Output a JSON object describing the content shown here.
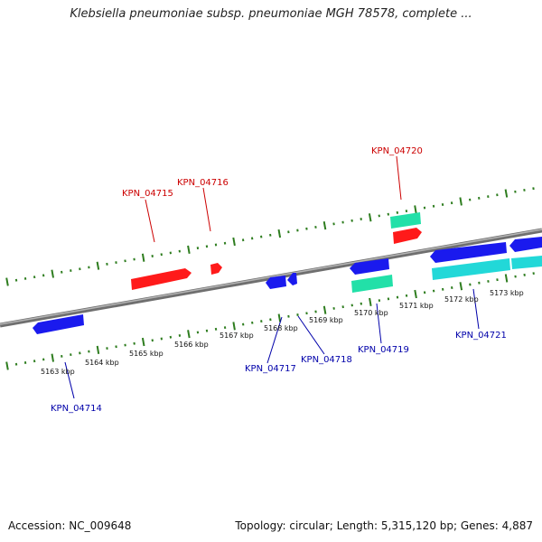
{
  "title": "Klebsiella pneumoniae subsp. pneumoniae MGH 78578, complete ...",
  "footer": {
    "accession": "Accession: NC_009648",
    "summary": "Topology: circular; Length: 5,315,120 bp; Genes: 4,887"
  },
  "colors": {
    "backbone": "#8a8a8a",
    "ticks": "#2e7d1f",
    "forward_gene": "#ff1a1a",
    "reverse_gene": "#1a1aee",
    "rna_top": "#22e0a8",
    "rna_bottom": "#22d8d8",
    "forward_label": "#cc0000",
    "reverse_label": "#0000aa"
  },
  "kbp_labels": [
    "5163 kbp",
    "5164 kbp",
    "5165 kbp",
    "5166 kbp",
    "5167 kbp",
    "5168 kbp",
    "5169 kbp",
    "5170 kbp",
    "5171 kbp",
    "5172 kbp",
    "5173 kbp"
  ],
  "gene_labels": {
    "forward": [
      "KPN_04715",
      "KPN_04716",
      "KPN_04720"
    ],
    "reverse": [
      "KPN_04714",
      "KPN_04717",
      "KPN_04718",
      "KPN_04719",
      "KPN_04721"
    ]
  }
}
